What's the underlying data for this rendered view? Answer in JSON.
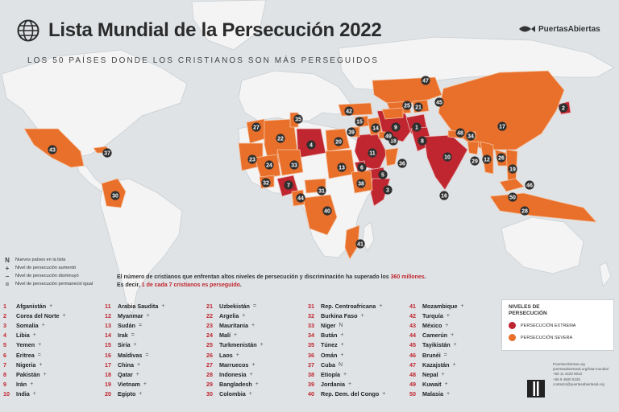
{
  "title": "Lista Mundial de la Persecución 2022",
  "subtitle": "LOS 50 PAÍSES DONDE LOS CRISTIANOS SON MÁS PERSEGUIDOS",
  "brand": {
    "name": "PuertasAbiertas",
    "logo_icon": "fish-icon"
  },
  "colors": {
    "extreme": "#c0262f",
    "severe": "#e9702b",
    "land": "#f4f4f4",
    "ocean": "#dfe3e6",
    "rank_circle": "#2f2f2f"
  },
  "symbol_legend": [
    {
      "symbol": "N",
      "icon": "new-country-icon",
      "label": "Nuevos países en la lista"
    },
    {
      "symbol": "+",
      "icon": "increase-icon",
      "label": "Nivel de persecución aumentó"
    },
    {
      "symbol": "−",
      "icon": "decrease-icon",
      "label": "Nivel de persecución disminuyó"
    },
    {
      "symbol": "=",
      "icon": "equal-icon",
      "label": "Nivel de persecución permaneció igual"
    }
  ],
  "notice": {
    "line1_a": "El número de cristianos que enfrentan altos niveles de persecución y discriminación ha superado los ",
    "line1_highlight": "360 millones",
    "line1_b": ".",
    "line2_a": "Es decir, ",
    "line2_highlight": "1 de cada 7 cristianos es perseguido",
    "line2_b": "."
  },
  "levels": {
    "heading_line1": "NIVELES DE",
    "heading_line2": "PERSECUCIÓN",
    "extreme_label": "PERSECUCIÓN EXTREMA",
    "severe_label": "PERSECUCIÓN SEVERA"
  },
  "contact": [
    "PuertasAbiertas.org",
    "puertasabiertasal.org/lista-mundial",
    "+56 11 4429 8010",
    "+56 9 4600 5225",
    "contacto@puertasabiertasal.org"
  ],
  "ranking": [
    {
      "rank": "1",
      "country": "Afganistán",
      "trend": "+"
    },
    {
      "rank": "2",
      "country": "Corea del Norte",
      "trend": "+"
    },
    {
      "rank": "3",
      "country": "Somalia",
      "trend": "+"
    },
    {
      "rank": "4",
      "country": "Libia",
      "trend": "+"
    },
    {
      "rank": "5",
      "country": "Yemen",
      "trend": "+"
    },
    {
      "rank": "6",
      "country": "Eritrea",
      "trend": "="
    },
    {
      "rank": "7",
      "country": "Nigeria",
      "trend": "+"
    },
    {
      "rank": "8",
      "country": "Pakistán",
      "trend": "+"
    },
    {
      "rank": "9",
      "country": "Irán",
      "trend": "+"
    },
    {
      "rank": "10",
      "country": "India",
      "trend": "+"
    },
    {
      "rank": "11",
      "country": "Arabia Saudita",
      "trend": "+"
    },
    {
      "rank": "12",
      "country": "Myanmar",
      "trend": "+"
    },
    {
      "rank": "13",
      "country": "Sudán",
      "trend": "="
    },
    {
      "rank": "14",
      "country": "Irak",
      "trend": "="
    },
    {
      "rank": "15",
      "country": "Siria",
      "trend": "+"
    },
    {
      "rank": "16",
      "country": "Maldivas",
      "trend": "="
    },
    {
      "rank": "17",
      "country": "China",
      "trend": "+"
    },
    {
      "rank": "18",
      "country": "Qatar",
      "trend": "+"
    },
    {
      "rank": "19",
      "country": "Vietnam",
      "trend": "+"
    },
    {
      "rank": "20",
      "country": "Egipto",
      "trend": "+"
    },
    {
      "rank": "21",
      "country": "Uzbekistán",
      "trend": "="
    },
    {
      "rank": "22",
      "country": "Argelia",
      "trend": "+"
    },
    {
      "rank": "23",
      "country": "Mauritania",
      "trend": "+"
    },
    {
      "rank": "24",
      "country": "Malí",
      "trend": "+"
    },
    {
      "rank": "25",
      "country": "Turkmenistán",
      "trend": "+"
    },
    {
      "rank": "26",
      "country": "Laos",
      "trend": "+"
    },
    {
      "rank": "27",
      "country": "Marruecos",
      "trend": "+"
    },
    {
      "rank": "28",
      "country": "Indonesia",
      "trend": "+"
    },
    {
      "rank": "29",
      "country": "Bangladesh",
      "trend": "+"
    },
    {
      "rank": "30",
      "country": "Colombia",
      "trend": "+"
    },
    {
      "rank": "31",
      "country": "Rep. Centroafricana",
      "trend": "+"
    },
    {
      "rank": "32",
      "country": "Burkina Faso",
      "trend": "+"
    },
    {
      "rank": "33",
      "country": "Níger",
      "trend": "N"
    },
    {
      "rank": "34",
      "country": "Bután",
      "trend": "+"
    },
    {
      "rank": "35",
      "country": "Túnez",
      "trend": "+"
    },
    {
      "rank": "36",
      "country": "Omán",
      "trend": "+"
    },
    {
      "rank": "37",
      "country": "Cuba",
      "trend": "N"
    },
    {
      "rank": "38",
      "country": "Etiopía",
      "trend": "+"
    },
    {
      "rank": "39",
      "country": "Jordania",
      "trend": "+"
    },
    {
      "rank": "40",
      "country": "Rep. Dem. del Congo",
      "trend": "+"
    },
    {
      "rank": "41",
      "country": "Mozambique",
      "trend": "+"
    },
    {
      "rank": "42",
      "country": "Turquía",
      "trend": "+"
    },
    {
      "rank": "43",
      "country": "México",
      "trend": "+"
    },
    {
      "rank": "44",
      "country": "Camerún",
      "trend": "+"
    },
    {
      "rank": "45",
      "country": "Tayikistán",
      "trend": "+"
    },
    {
      "rank": "46",
      "country": "Brunéi",
      "trend": "="
    },
    {
      "rank": "47",
      "country": "Kazajstán",
      "trend": "+"
    },
    {
      "rank": "48",
      "country": "Nepal",
      "trend": "+"
    },
    {
      "rank": "49",
      "country": "Kuwait",
      "trend": "+"
    },
    {
      "rank": "50",
      "country": "Malasia",
      "trend": "+"
    }
  ],
  "markers": [
    {
      "rank": "1",
      "level": "extreme"
    },
    {
      "rank": "2",
      "level": "extreme"
    },
    {
      "rank": "3",
      "level": "extreme"
    },
    {
      "rank": "4",
      "level": "extreme"
    },
    {
      "rank": "5",
      "level": "extreme"
    },
    {
      "rank": "6",
      "level": "extreme"
    },
    {
      "rank": "7",
      "level": "extreme"
    },
    {
      "rank": "8",
      "level": "extreme"
    },
    {
      "rank": "9",
      "level": "extreme"
    },
    {
      "rank": "10",
      "level": "extreme"
    },
    {
      "rank": "11",
      "level": "extreme"
    },
    {
      "rank": "12",
      "level": "severe"
    },
    {
      "rank": "13",
      "level": "severe"
    },
    {
      "rank": "14",
      "level": "severe"
    },
    {
      "rank": "15",
      "level": "severe"
    },
    {
      "rank": "16",
      "level": "severe"
    },
    {
      "rank": "17",
      "level": "severe"
    },
    {
      "rank": "18",
      "level": "severe"
    },
    {
      "rank": "19",
      "level": "severe"
    },
    {
      "rank": "20",
      "level": "severe"
    },
    {
      "rank": "21",
      "level": "severe"
    },
    {
      "rank": "22",
      "level": "severe"
    },
    {
      "rank": "23",
      "level": "severe"
    },
    {
      "rank": "24",
      "level": "severe"
    },
    {
      "rank": "25",
      "level": "severe"
    },
    {
      "rank": "26",
      "level": "severe"
    },
    {
      "rank": "27",
      "level": "severe"
    },
    {
      "rank": "28",
      "level": "severe"
    },
    {
      "rank": "29",
      "level": "severe"
    },
    {
      "rank": "30",
      "level": "severe"
    },
    {
      "rank": "31",
      "level": "severe"
    },
    {
      "rank": "32",
      "level": "severe"
    },
    {
      "rank": "33",
      "level": "severe"
    },
    {
      "rank": "34",
      "level": "severe"
    },
    {
      "rank": "35",
      "level": "severe"
    },
    {
      "rank": "36",
      "level": "severe"
    },
    {
      "rank": "37",
      "level": "severe"
    },
    {
      "rank": "38",
      "level": "severe"
    },
    {
      "rank": "39",
      "level": "severe"
    },
    {
      "rank": "40",
      "level": "severe"
    },
    {
      "rank": "41",
      "level": "severe"
    },
    {
      "rank": "42",
      "level": "severe"
    },
    {
      "rank": "43",
      "level": "severe"
    },
    {
      "rank": "44",
      "level": "severe"
    },
    {
      "rank": "45",
      "level": "severe"
    },
    {
      "rank": "46",
      "level": "severe"
    },
    {
      "rank": "47",
      "level": "severe"
    },
    {
      "rank": "48",
      "level": "severe"
    },
    {
      "rank": "49",
      "level": "severe"
    },
    {
      "rank": "50",
      "level": "severe"
    }
  ]
}
